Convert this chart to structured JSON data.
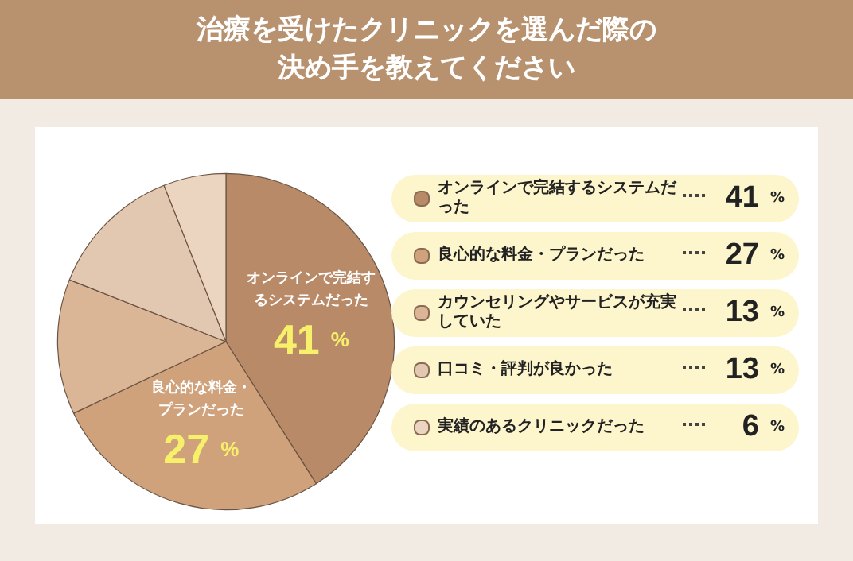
{
  "chart_data": {
    "type": "pie",
    "title": "治療を受けたクリニックを選んだ際の決め手を教えてください",
    "categories": [
      "オンラインで完結するシステムだった",
      "良心的な料金・プランだった",
      "カウンセリングやサービスが充実していた",
      "口コミ・評判が良かった",
      "実績のあるクリニックだった"
    ],
    "values": [
      41,
      27,
      13,
      13,
      6
    ],
    "value_labels": [
      "41 %",
      "27 %",
      "13 %",
      "13 %",
      "6 %"
    ],
    "legend": "right",
    "colors": [
      "#b88a68",
      "#d0a27c",
      "#dab596",
      "#e2c7b1",
      "#ecd5c0"
    ]
  }
}
